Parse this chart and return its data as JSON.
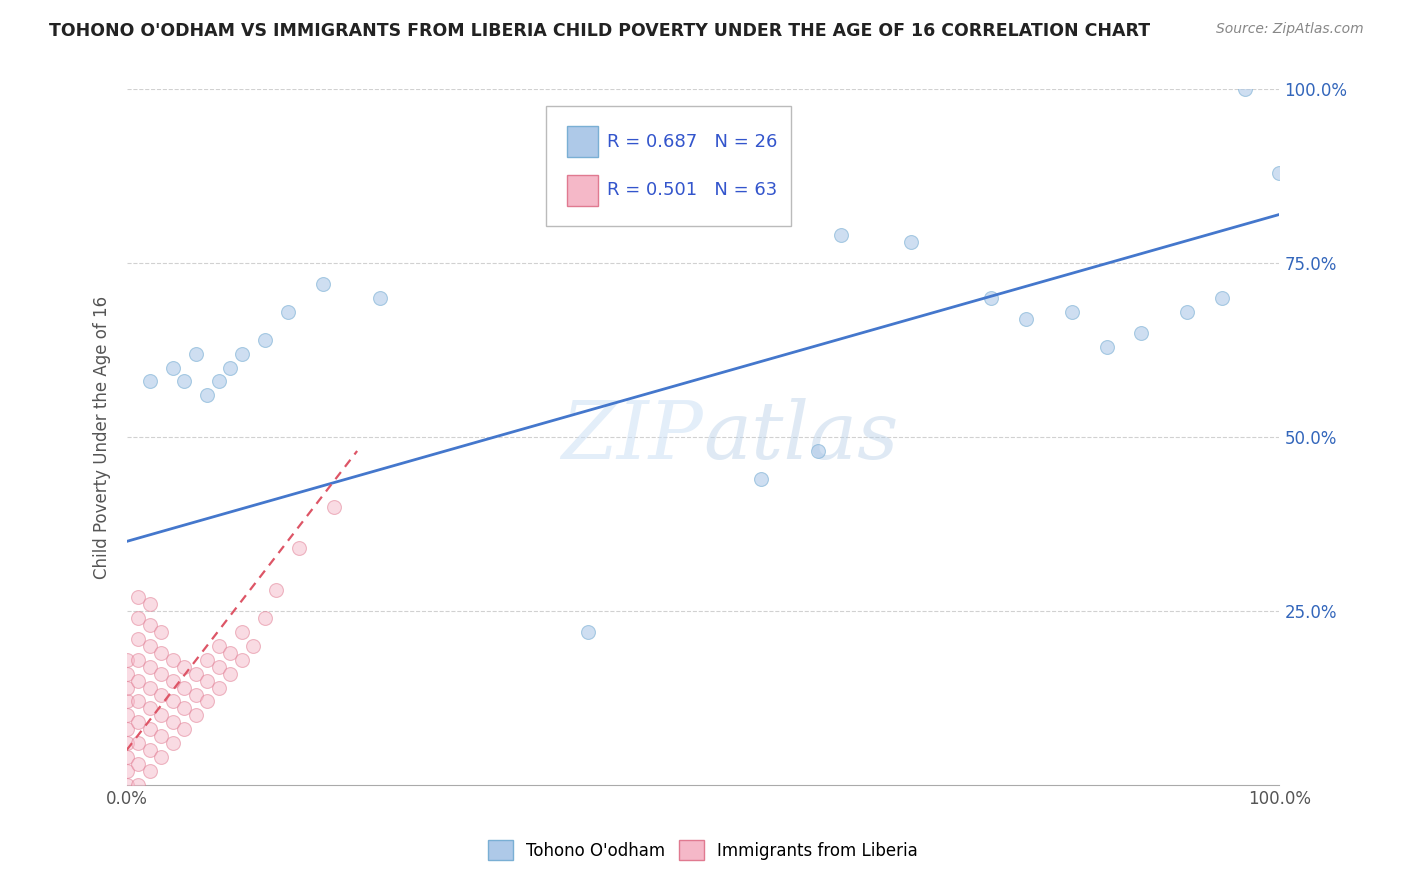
{
  "title": "TOHONO O'ODHAM VS IMMIGRANTS FROM LIBERIA CHILD POVERTY UNDER THE AGE OF 16 CORRELATION CHART",
  "source": "Source: ZipAtlas.com",
  "ylabel": "Child Poverty Under the Age of 16",
  "watermark": "ZIPatlas",
  "blue_R": 0.687,
  "blue_N": 26,
  "pink_R": 0.501,
  "pink_N": 63,
  "blue_color": "#aec9e8",
  "blue_edge": "#7aafd4",
  "pink_color": "#f5b8c8",
  "pink_edge": "#e07a90",
  "line_blue": "#4477cc",
  "line_pink": "#dd5566",
  "legend_color": "#3355cc",
  "grid_color": "#cccccc",
  "background": "#ffffff",
  "blue_x": [
    0.02,
    0.04,
    0.05,
    0.06,
    0.07,
    0.08,
    0.09,
    0.1,
    0.12,
    0.14,
    0.17,
    0.22,
    0.4,
    0.55,
    0.6,
    0.62,
    0.68,
    0.75,
    0.78,
    0.82,
    0.85,
    0.88,
    0.92,
    0.95,
    0.97,
    1.0
  ],
  "blue_y": [
    0.58,
    0.6,
    0.58,
    0.62,
    0.56,
    0.58,
    0.6,
    0.62,
    0.64,
    0.68,
    0.72,
    0.7,
    0.22,
    0.44,
    0.48,
    0.79,
    0.78,
    0.7,
    0.67,
    0.68,
    0.63,
    0.65,
    0.68,
    0.7,
    1.0,
    0.88
  ],
  "pink_x": [
    0.0,
    0.0,
    0.0,
    0.0,
    0.0,
    0.0,
    0.0,
    0.0,
    0.0,
    0.0,
    0.01,
    0.01,
    0.01,
    0.01,
    0.01,
    0.01,
    0.01,
    0.01,
    0.01,
    0.01,
    0.02,
    0.02,
    0.02,
    0.02,
    0.02,
    0.02,
    0.02,
    0.02,
    0.02,
    0.03,
    0.03,
    0.03,
    0.03,
    0.03,
    0.03,
    0.03,
    0.04,
    0.04,
    0.04,
    0.04,
    0.04,
    0.05,
    0.05,
    0.05,
    0.05,
    0.06,
    0.06,
    0.06,
    0.07,
    0.07,
    0.07,
    0.08,
    0.08,
    0.08,
    0.09,
    0.09,
    0.1,
    0.1,
    0.11,
    0.12,
    0.13,
    0.15,
    0.18
  ],
  "pink_y": [
    0.0,
    0.02,
    0.04,
    0.06,
    0.08,
    0.1,
    0.12,
    0.14,
    0.16,
    0.18,
    0.0,
    0.03,
    0.06,
    0.09,
    0.12,
    0.15,
    0.18,
    0.21,
    0.24,
    0.27,
    0.02,
    0.05,
    0.08,
    0.11,
    0.14,
    0.17,
    0.2,
    0.23,
    0.26,
    0.04,
    0.07,
    0.1,
    0.13,
    0.16,
    0.19,
    0.22,
    0.06,
    0.09,
    0.12,
    0.15,
    0.18,
    0.08,
    0.11,
    0.14,
    0.17,
    0.1,
    0.13,
    0.16,
    0.12,
    0.15,
    0.18,
    0.14,
    0.17,
    0.2,
    0.16,
    0.19,
    0.18,
    0.22,
    0.2,
    0.24,
    0.28,
    0.34,
    0.4
  ],
  "xlim": [
    0.0,
    1.0
  ],
  "ylim": [
    0.0,
    1.0
  ],
  "xtick_positions": [
    0.0,
    1.0
  ],
  "xtick_labels": [
    "0.0%",
    "100.0%"
  ],
  "ytick_positions": [
    0.25,
    0.5,
    0.75,
    1.0
  ],
  "ytick_labels": [
    "25.0%",
    "50.0%",
    "75.0%",
    "100.0%"
  ],
  "grid_yticks": [
    0.25,
    0.5,
    0.75,
    1.0
  ],
  "marker_size": 100,
  "alpha_blue": 0.6,
  "alpha_pink": 0.5,
  "blue_line_x0": 0.0,
  "blue_line_y0": 0.35,
  "blue_line_x1": 1.0,
  "blue_line_y1": 0.82,
  "pink_line_x0": 0.0,
  "pink_line_y0": 0.05,
  "pink_line_x1": 0.2,
  "pink_line_y1": 0.48
}
